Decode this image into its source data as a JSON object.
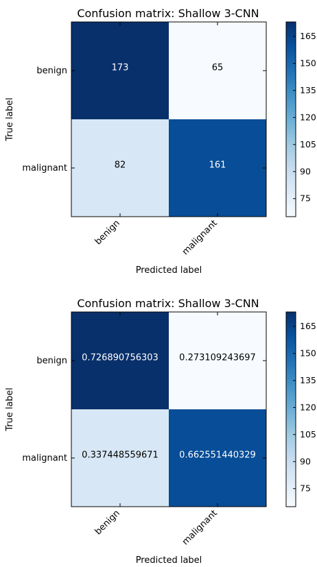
{
  "chart_data": [
    {
      "type": "heatmap",
      "title": "Confusion matrix: Shallow 3-CNN",
      "xlabel": "Predicted label",
      "ylabel": "True label",
      "x_categories": [
        "benign",
        "malignant"
      ],
      "y_categories": [
        "benign",
        "malignant"
      ],
      "values": [
        [
          173,
          65
        ],
        [
          82,
          161
        ]
      ],
      "cell_labels": [
        [
          "173",
          "65"
        ],
        [
          "82",
          "161"
        ]
      ],
      "colormap": "Blues",
      "colorbar": {
        "range": [
          65,
          173
        ],
        "ticks": [
          75,
          90,
          105,
          120,
          135,
          150,
          165
        ]
      }
    },
    {
      "type": "heatmap",
      "title": "Confusion matrix: Shallow 3-CNN",
      "xlabel": "Predicted label",
      "ylabel": "True label",
      "x_categories": [
        "benign",
        "malignant"
      ],
      "y_categories": [
        "benign",
        "malignant"
      ],
      "values": [
        [
          173,
          65
        ],
        [
          82,
          161
        ]
      ],
      "cell_labels": [
        [
          "0.726890756303",
          "0.273109243697"
        ],
        [
          "0.337448559671",
          "0.662551440329"
        ]
      ],
      "colormap": "Blues",
      "colorbar": {
        "range": [
          65,
          173
        ],
        "ticks": [
          75,
          90,
          105,
          120,
          135,
          150,
          165
        ]
      }
    }
  ]
}
